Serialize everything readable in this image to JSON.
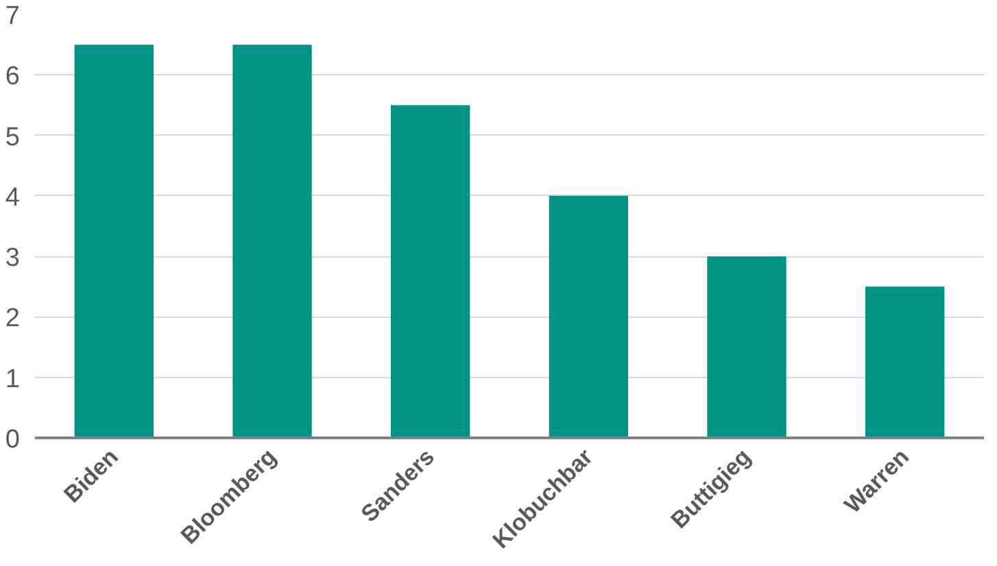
{
  "chart_data": {
    "type": "bar",
    "categories": [
      "Biden",
      "Bloomberg",
      "Sanders",
      "Klobuchbar",
      "Buttigieg",
      "Warren"
    ],
    "values": [
      6.5,
      6.5,
      5.5,
      4,
      3,
      2.5
    ],
    "color": "#009384",
    "ylim": [
      0,
      7
    ],
    "yticks": [
      0,
      1,
      2,
      3,
      4,
      5,
      6,
      7
    ],
    "grid": "y"
  }
}
